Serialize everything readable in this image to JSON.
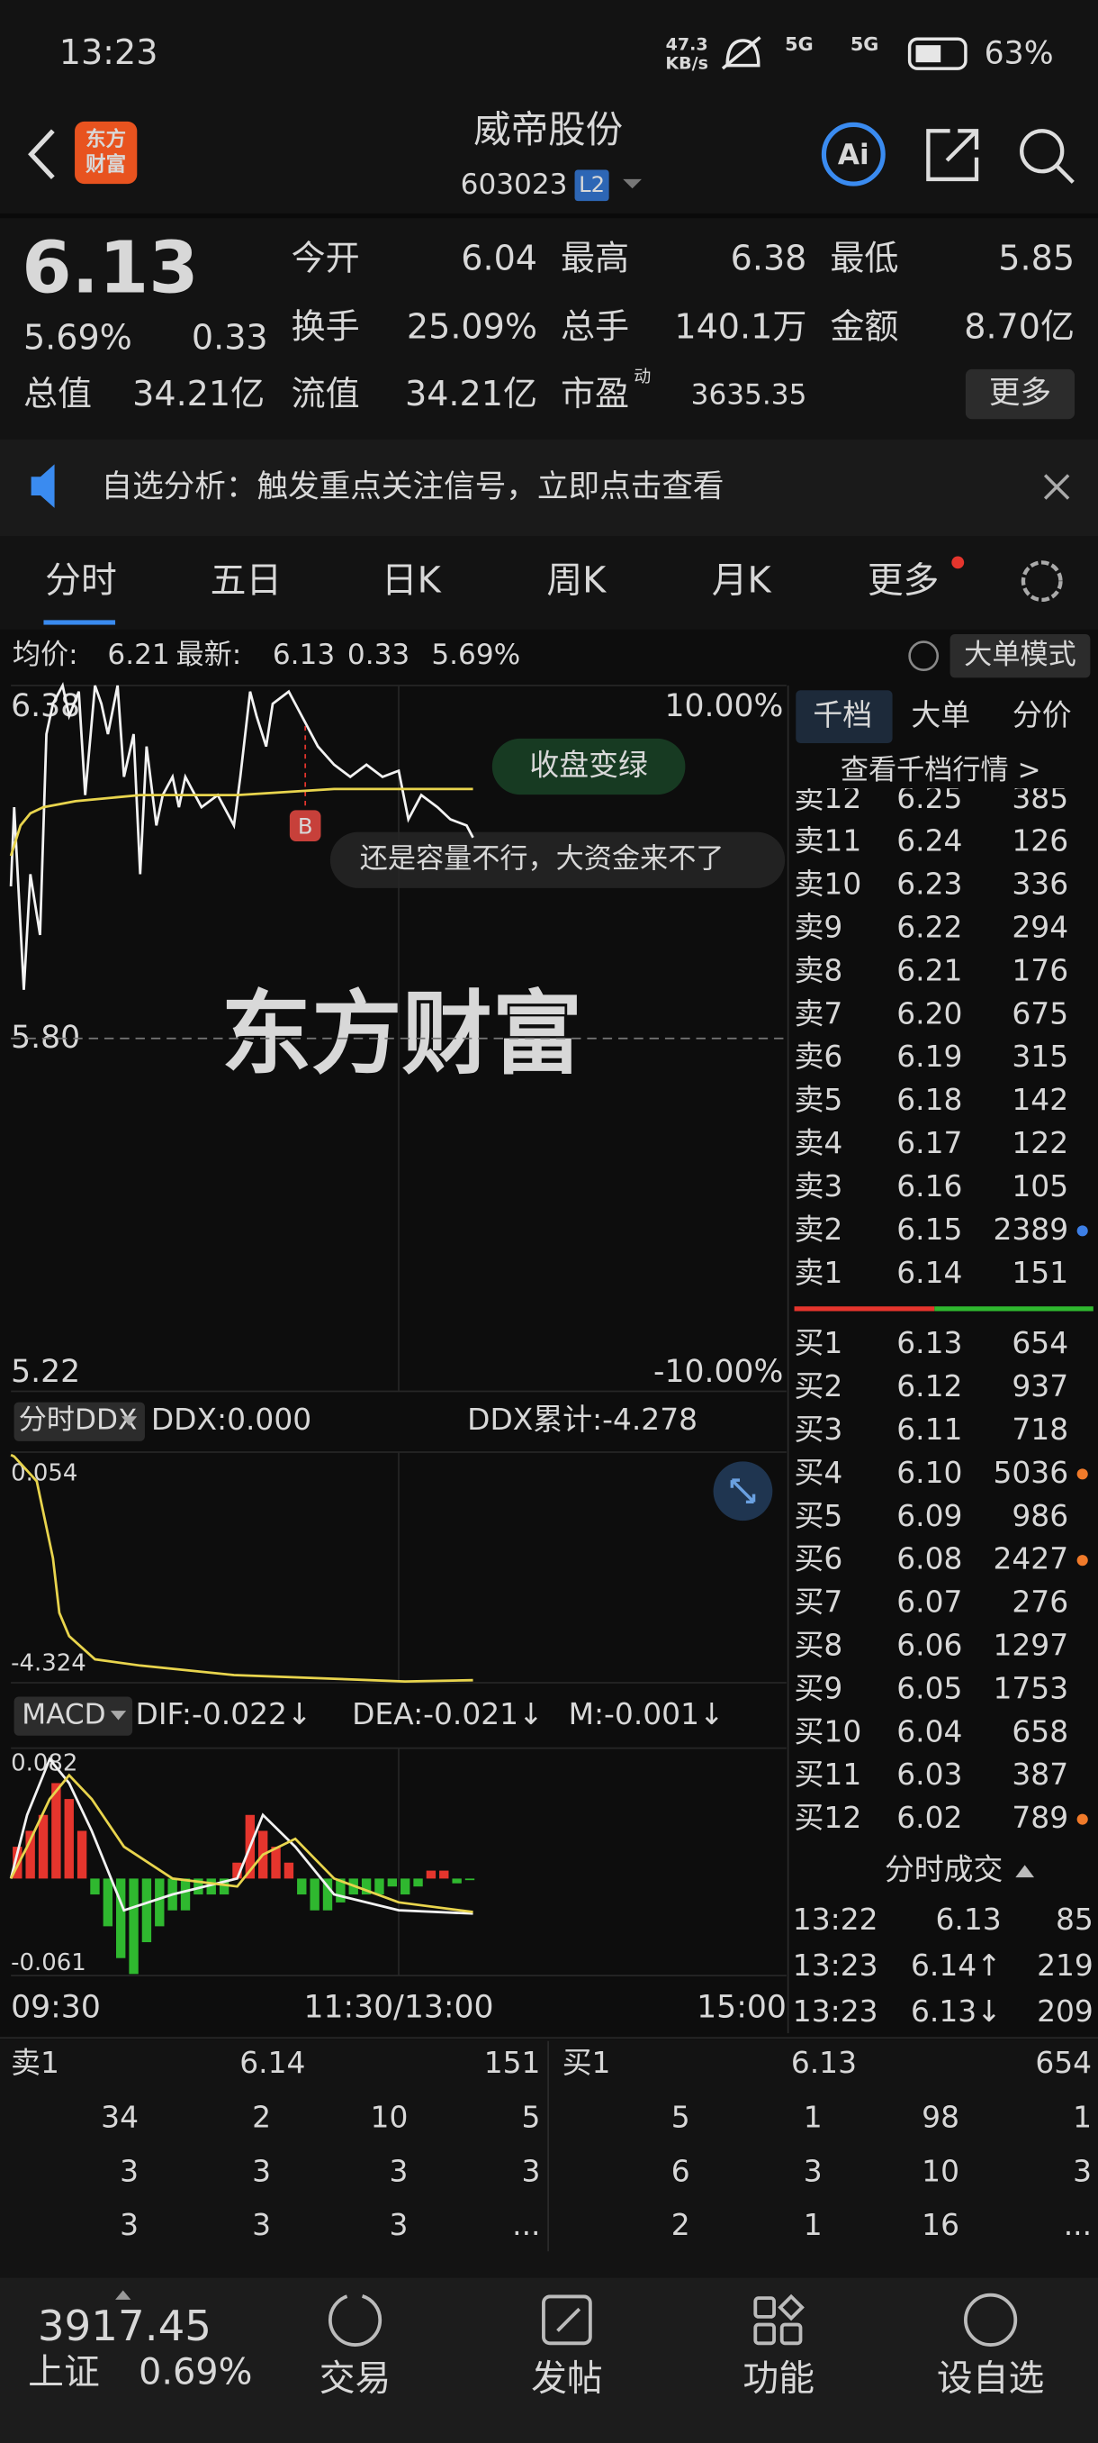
{
  "status_bar": {
    "time": "13:23",
    "speed": [
      "47.3",
      "KB/s"
    ],
    "networks": [
      "5G",
      "5G"
    ],
    "battery": "63%"
  },
  "header": {
    "logo": [
      "东方",
      "财富"
    ],
    "title": "威帝股份",
    "code": "603023",
    "badge": "L2",
    "ai": "Ai"
  },
  "quote": {
    "price": "6.13",
    "change_pct": "5.69%",
    "change": "0.33",
    "rows": [
      [
        {
          "label": "今开",
          "value": "6.04"
        },
        {
          "label": "最高",
          "value": "6.38"
        },
        {
          "label": "最低",
          "value": "5.85"
        }
      ],
      [
        {
          "label": "换手",
          "value": "25.09%"
        },
        {
          "label": "总手",
          "value": "140.1万"
        },
        {
          "label": "金额",
          "value": "8.70亿"
        }
      ],
      [
        {
          "label": "总值",
          "value": "34.21亿"
        },
        {
          "label": "流值",
          "value": "34.21亿"
        },
        {
          "label": "市盈",
          "sup": "动",
          "value": "3635.35"
        }
      ]
    ],
    "more": "更多"
  },
  "banner": {
    "text": "自选分析：触发重点关注信号，立即点击查看"
  },
  "tabs": [
    "分时",
    "五日",
    "日K",
    "周K",
    "月K",
    "更多"
  ],
  "info": {
    "avg_label": "均价:",
    "avg": "6.21",
    "latest_label": "最新:",
    "latest": "6.13",
    "change": "0.33",
    "change_pct": "5.69%",
    "mode": "大单模式"
  },
  "watermark": "东方财富",
  "chart_data": [
    {
      "type": "line",
      "xlim": [
        0,
        240
      ],
      "ylim": [
        5.22,
        6.38
      ],
      "yticks": [
        5.22,
        {
          "value": 5.8,
          "label": "5.80"
        },
        6.38
      ],
      "y2lim": [
        -10,
        10
      ],
      "y2ticks": [
        {
          "value": -10,
          "label": "-10.00%"
        },
        {
          "value": 10,
          "label": "10.00%"
        }
      ],
      "series": [
        {
          "color": "#f2f2f2",
          "x": [
            0,
            1,
            4,
            6,
            9,
            11,
            13,
            16,
            18,
            21,
            23,
            26,
            28,
            30,
            33,
            35,
            38,
            40,
            42,
            45,
            47,
            50,
            52,
            54,
            59,
            64,
            69,
            71,
            74,
            76,
            79,
            81,
            86,
            91,
            95,
            100,
            105,
            110,
            115,
            120,
            123,
            127,
            132,
            136,
            141,
            143
          ],
          "values": [
            6.05,
            6.18,
            5.88,
            6.07,
            5.97,
            6.3,
            6.35,
            6.38,
            6.33,
            6.37,
            6.2,
            6.38,
            6.35,
            6.3,
            6.38,
            6.23,
            6.3,
            6.07,
            6.28,
            6.15,
            6.2,
            6.23,
            6.18,
            6.23,
            6.18,
            6.2,
            6.15,
            6.23,
            6.37,
            6.33,
            6.28,
            6.35,
            6.37,
            6.32,
            6.28,
            6.25,
            6.23,
            6.25,
            6.23,
            6.24,
            6.16,
            6.2,
            6.18,
            6.16,
            6.15,
            6.13
          ]
        },
        {
          "color": "#e8d44d",
          "x": [
            0,
            3,
            6,
            10,
            20,
            40,
            70,
            100,
            143
          ],
          "values": [
            6.1,
            6.15,
            6.17,
            6.18,
            6.19,
            6.2,
            6.2,
            6.21,
            6.21
          ]
        }
      ],
      "annotations": [
        "收盘变绿",
        "还是容量不行，大资金来不了"
      ],
      "marker": "B"
    },
    {
      "type": "line",
      "title": "分时DDX",
      "stats": [
        "DDX:0.000",
        "DDX累计:-4.278"
      ],
      "xlim": [
        0,
        240
      ],
      "ylim": [
        -4.324,
        0.054
      ],
      "yticks": [
        0.054,
        -4.324
      ],
      "series": [
        {
          "color": "#e8d44d",
          "x": [
            0,
            1,
            8,
            13,
            15,
            18,
            26,
            40,
            69,
            100,
            122,
            143
          ],
          "values": [
            0.0,
            -0.03,
            -0.5,
            -1.96,
            -3.0,
            -3.44,
            -3.88,
            -4.0,
            -4.18,
            -4.25,
            -4.3,
            -4.278
          ]
        }
      ]
    },
    {
      "type": "macd",
      "title": "MACD",
      "stats": [
        "DIF:-0.022↓",
        "DEA:-0.021↓",
        "M:-0.001↓"
      ],
      "xlim": [
        0,
        240
      ],
      "xticks": [
        {
          "value": 0,
          "label": "09:30"
        },
        {
          "value": 120,
          "label": "11:30/13:00"
        },
        {
          "value": 240,
          "label": "15:00"
        }
      ],
      "ylim": [
        -0.061,
        0.082
      ],
      "yticks": [
        0.082,
        -0.061
      ],
      "bars": {
        "colors": [
          "#e5352d",
          "#2fb82f"
        ],
        "x": [
          2,
          6,
          10,
          14,
          18,
          22,
          26,
          30,
          34,
          38,
          42,
          46,
          50,
          54,
          58,
          62,
          66,
          70,
          74,
          78,
          82,
          86,
          90,
          94,
          98,
          102,
          106,
          110,
          114,
          118,
          122,
          126,
          130,
          134,
          138,
          142
        ],
        "values": [
          0.02,
          0.03,
          0.04,
          0.06,
          0.05,
          0.03,
          -0.01,
          -0.03,
          -0.05,
          -0.06,
          -0.04,
          -0.03,
          -0.02,
          -0.02,
          -0.01,
          -0.01,
          -0.01,
          0.01,
          0.04,
          0.03,
          0.02,
          0.01,
          -0.01,
          -0.02,
          -0.02,
          -0.015,
          -0.01,
          -0.01,
          -0.01,
          -0.005,
          -0.01,
          -0.005,
          0.005,
          0.005,
          -0.003,
          -0.001
        ]
      },
      "series": [
        {
          "color": "#f2f2f2",
          "x": [
            0,
            5,
            12,
            18,
            25,
            35,
            50,
            70,
            78,
            88,
            100,
            120,
            143
          ],
          "values": [
            0.0,
            0.04,
            0.075,
            0.06,
            0.03,
            -0.02,
            -0.01,
            0.0,
            0.04,
            0.02,
            -0.01,
            -0.02,
            -0.022
          ]
        },
        {
          "color": "#e8d44d",
          "x": [
            0,
            5,
            12,
            18,
            25,
            35,
            50,
            70,
            78,
            88,
            100,
            120,
            143
          ],
          "values": [
            0.0,
            0.02,
            0.05,
            0.065,
            0.05,
            0.02,
            0.0,
            -0.005,
            0.015,
            0.025,
            0.0,
            -0.015,
            -0.021
          ]
        }
      ]
    }
  ],
  "order_book": {
    "tabs": [
      "千档",
      "大单",
      "分价"
    ],
    "link": "查看千档行情 >",
    "sells": [
      {
        "label": "卖12",
        "price": "6.25",
        "volume": "385"
      },
      {
        "label": "卖11",
        "price": "6.24",
        "volume": "126"
      },
      {
        "label": "卖10",
        "price": "6.23",
        "volume": "336"
      },
      {
        "label": "卖9",
        "price": "6.22",
        "volume": "294"
      },
      {
        "label": "卖8",
        "price": "6.21",
        "volume": "176"
      },
      {
        "label": "卖7",
        "price": "6.20",
        "volume": "675"
      },
      {
        "label": "卖6",
        "price": "6.19",
        "volume": "315"
      },
      {
        "label": "卖5",
        "price": "6.18",
        "volume": "142"
      },
      {
        "label": "卖4",
        "price": "6.17",
        "volume": "122"
      },
      {
        "label": "卖3",
        "price": "6.16",
        "volume": "105"
      },
      {
        "label": "卖2",
        "price": "6.15",
        "volume": "2389",
        "dot": "#3d7fe6"
      },
      {
        "label": "卖1",
        "price": "6.14",
        "volume": "151"
      }
    ],
    "buys": [
      {
        "label": "买1",
        "price": "6.13",
        "volume": "654"
      },
      {
        "label": "买2",
        "price": "6.12",
        "volume": "937"
      },
      {
        "label": "买3",
        "price": "6.11",
        "volume": "718"
      },
      {
        "label": "买4",
        "price": "6.10",
        "volume": "5036",
        "dot": "#f07a2a"
      },
      {
        "label": "买5",
        "price": "6.09",
        "volume": "986"
      },
      {
        "label": "买6",
        "price": "6.08",
        "volume": "2427",
        "dot": "#f07a2a"
      },
      {
        "label": "买7",
        "price": "6.07",
        "volume": "276"
      },
      {
        "label": "买8",
        "price": "6.06",
        "volume": "1297"
      },
      {
        "label": "买9",
        "price": "6.05",
        "volume": "1753"
      },
      {
        "label": "买10",
        "price": "6.04",
        "volume": "658"
      },
      {
        "label": "买11",
        "price": "6.03",
        "volume": "387"
      },
      {
        "label": "买12",
        "price": "6.02",
        "volume": "789",
        "dot": "#f07a2a"
      }
    ],
    "trades_title": "分时成交",
    "trades": [
      {
        "time": "13:22",
        "price": "6.13",
        "volume": "85",
        "volume_color": "#2fb82f"
      },
      {
        "time": "13:23",
        "price": "6.14↑",
        "volume": "219",
        "volume_color": "#e5352d"
      },
      {
        "time": "13:23",
        "price": "6.13↓",
        "volume": "209",
        "volume_color": "#2fb82f"
      }
    ]
  },
  "queue": {
    "sell": {
      "label": "卖1",
      "price": "6.14",
      "volume": "151",
      "rows": [
        [
          "34",
          "2",
          "10",
          "5"
        ],
        [
          "3",
          "3",
          "3",
          "3"
        ],
        [
          "3",
          "3",
          "3",
          "..."
        ]
      ]
    },
    "buy": {
      "label": "买1",
      "price": "6.13",
      "volume": "654",
      "rows": [
        [
          "5",
          "1",
          "98",
          "1"
        ],
        [
          "6",
          "3",
          "10",
          "3"
        ],
        [
          "2",
          "1",
          "16",
          "..."
        ]
      ]
    }
  },
  "bottom_nav": {
    "index_value": "3917.45",
    "index_name": "上证",
    "index_change": "0.69%",
    "items": [
      "交易",
      "发帖",
      "功能",
      "设自选"
    ]
  }
}
